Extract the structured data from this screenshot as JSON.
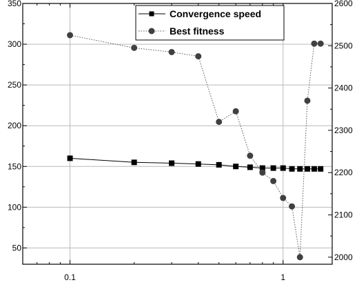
{
  "chart_data": {
    "type": "line",
    "x_scale": "log",
    "xlim": [
      0.06,
      1.7
    ],
    "x_ticks": [
      {
        "value": 0.1,
        "label": "0.1"
      },
      {
        "value": 1,
        "label": "1"
      }
    ],
    "y_left": {
      "lim": [
        30,
        350
      ],
      "ticks": [
        50,
        100,
        150,
        200,
        250,
        300,
        350
      ]
    },
    "y_right": {
      "lim": [
        1983.3,
        2600
      ],
      "ticks": [
        2000,
        2100,
        2200,
        2300,
        2400,
        2500,
        2600
      ]
    },
    "grid": true,
    "legend_position": "top-right",
    "series": [
      {
        "name": "Convergence speed",
        "axis": "left",
        "marker": "square",
        "line_style": "solid",
        "color": "#000000",
        "x": [
          0.1,
          0.2,
          0.3,
          0.4,
          0.5,
          0.6,
          0.7,
          0.8,
          0.9,
          1.0,
          1.1,
          1.2,
          1.3,
          1.4,
          1.5
        ],
        "y": [
          160,
          155,
          154,
          153,
          152,
          150,
          149,
          148,
          148,
          148,
          147,
          147,
          147,
          147,
          147
        ]
      },
      {
        "name": "Best fitness",
        "axis": "right",
        "marker": "circle",
        "line_style": "dotted",
        "color": "#404040",
        "x": [
          0.1,
          0.2,
          0.3,
          0.4,
          0.5,
          0.6,
          0.7,
          0.8,
          0.9,
          1.0,
          1.1,
          1.2,
          1.3,
          1.4,
          1.5
        ],
        "y": [
          2525,
          2495,
          2485,
          2475,
          2320,
          2345,
          2240,
          2200,
          2180,
          2140,
          2120,
          2000,
          2370,
          2505,
          2505
        ]
      }
    ]
  }
}
